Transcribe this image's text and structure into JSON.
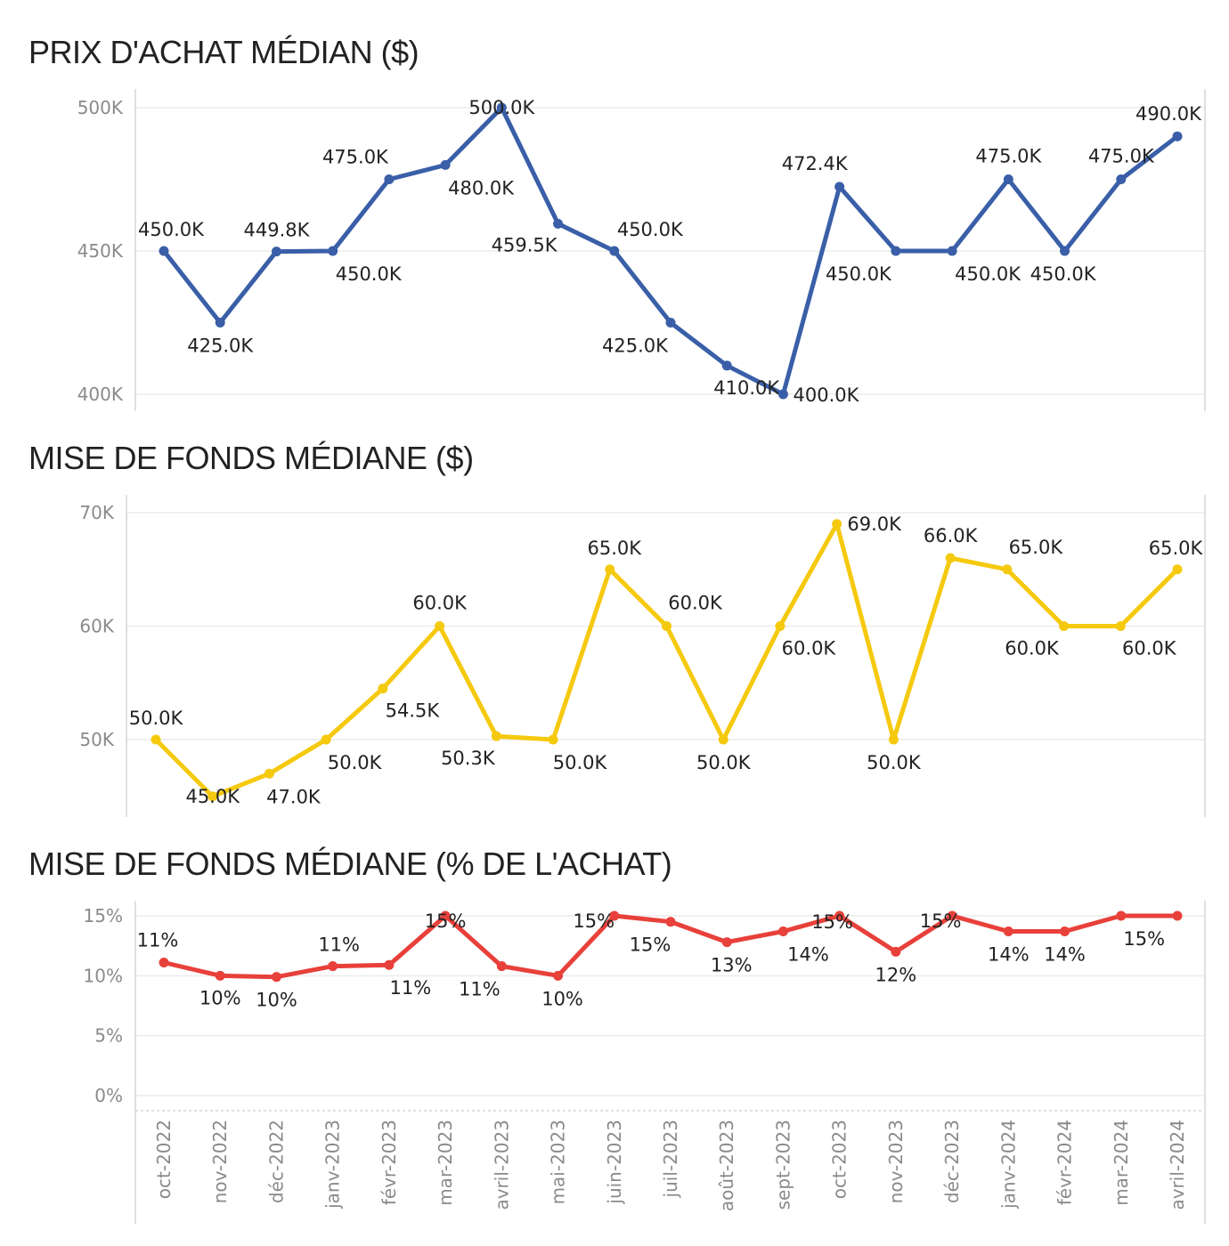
{
  "months": [
    "oct-2022",
    "nov-2022",
    "déc-2022",
    "janv-2023",
    "févr-2023",
    "mar-2023",
    "avril-2023",
    "mai-2023",
    "juin-2023",
    "juil-2023",
    "août-2023",
    "sept-2023",
    "oct-2023",
    "nov-2023",
    "déc-2023",
    "janv-2024",
    "févr-2024",
    "mar-2024",
    "avril-2024"
  ],
  "chart_data": [
    {
      "type": "line",
      "title": "PRIX D'ACHAT MÉDIAN ($)",
      "color": "#3A5FA8",
      "ylim": [
        395000,
        505000
      ],
      "y_ticks": [
        400000,
        450000,
        500000
      ],
      "y_tick_labels": [
        "400K",
        "450K",
        "500K"
      ],
      "x": [
        "oct-2022",
        "nov-2022",
        "déc-2022",
        "janv-2023",
        "févr-2023",
        "mar-2023",
        "avril-2023",
        "mai-2023",
        "juin-2023",
        "juil-2023",
        "août-2023",
        "sept-2023",
        "oct-2023",
        "nov-2023",
        "déc-2023",
        "janv-2024",
        "févr-2024",
        "mar-2024",
        "avril-2024"
      ],
      "values": [
        450000,
        425000,
        449800,
        450000,
        475000,
        480000,
        500000,
        459500,
        450000,
        425000,
        410000,
        400000,
        472400,
        450000,
        450000,
        475000,
        450000,
        475000,
        490000
      ],
      "data_labels": [
        "450.0K",
        "425.0K",
        "449.8K",
        "450.0K",
        "475.0K",
        "480.0K",
        "500.0K",
        "459.5K",
        "450.0K",
        "425.0K",
        "410.0K",
        "400.0K",
        "472.4K",
        "450.0K",
        "450.0K",
        "475.0K",
        "450.0K",
        "475.0K",
        "490.0K"
      ],
      "grid": true
    },
    {
      "type": "line",
      "title": "MISE DE FONDS MÉDIANE ($)",
      "color": "#F5C90E",
      "ylim": [
        44000,
        71000
      ],
      "y_ticks": [
        50000,
        60000,
        70000
      ],
      "y_tick_labels": [
        "50K",
        "60K",
        "70K"
      ],
      "x": [
        "oct-2022",
        "nov-2022",
        "déc-2022",
        "janv-2023",
        "févr-2023",
        "mar-2023",
        "avril-2023",
        "mai-2023",
        "juin-2023",
        "juil-2023",
        "août-2023",
        "sept-2023",
        "oct-2023",
        "nov-2023",
        "déc-2023",
        "janv-2024",
        "févr-2024",
        "mar-2024",
        "avril-2024"
      ],
      "values": [
        50000,
        45000,
        47000,
        50000,
        54500,
        60000,
        50300,
        50000,
        65000,
        60000,
        50000,
        60000,
        69000,
        50000,
        66000,
        65000,
        60000,
        60000,
        65000
      ],
      "data_labels": [
        "50.0K",
        "45.0K",
        "47.0K",
        "50.0K",
        "54.5K",
        "60.0K",
        "50.3K",
        "50.0K",
        "65.0K",
        "60.0K",
        "50.0K",
        "60.0K",
        "69.0K",
        "50.0K",
        "66.0K",
        "65.0K",
        "60.0K",
        "60.0K",
        "65.0K"
      ],
      "grid": true
    },
    {
      "type": "line",
      "title": "MISE DE FONDS MÉDIANE (% DE L'ACHAT)",
      "color": "#E8403A",
      "ylim": [
        -0.01,
        0.16
      ],
      "y_ticks": [
        0,
        0.05,
        0.1,
        0.15
      ],
      "y_tick_labels": [
        "0%",
        "5%",
        "10%",
        "15%"
      ],
      "x": [
        "oct-2022",
        "nov-2022",
        "déc-2022",
        "janv-2023",
        "févr-2023",
        "mar-2023",
        "avril-2023",
        "mai-2023",
        "juin-2023",
        "juil-2023",
        "août-2023",
        "sept-2023",
        "oct-2023",
        "nov-2023",
        "déc-2023",
        "janv-2024",
        "févr-2024",
        "mar-2024",
        "avril-2024"
      ],
      "values": [
        0.111,
        0.1,
        0.099,
        0.108,
        0.109,
        0.15,
        0.108,
        0.1,
        0.15,
        0.145,
        0.128,
        0.137,
        0.15,
        0.12,
        0.15,
        0.137,
        0.137,
        0.15,
        0.15
      ],
      "data_labels": [
        "11%",
        "10%",
        "10%",
        "11%",
        "11%",
        "15%",
        "11%",
        "10%",
        "15%",
        "15%",
        "13%",
        "14%",
        "15%",
        "12%",
        "15%",
        "14%",
        "14%",
        "15%",
        ""
      ],
      "grid": true
    }
  ]
}
